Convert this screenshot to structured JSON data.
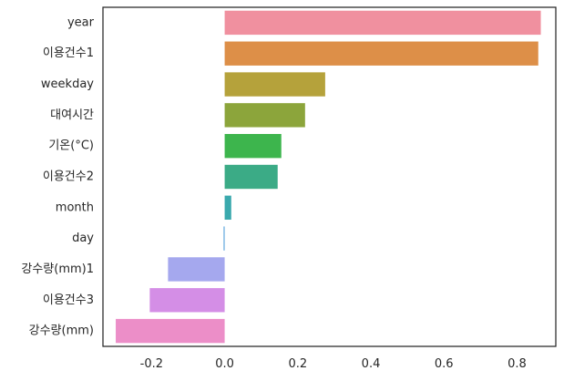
{
  "chart_data": {
    "type": "bar",
    "orientation": "horizontal",
    "categories": [
      "year",
      "이용건수1",
      "weekday",
      "대여시간",
      "기온(°C)",
      "이용건수2",
      "month",
      "day",
      "강수량(mm)1",
      "이용건수3",
      "강수량(mm)"
    ],
    "values": [
      0.865,
      0.858,
      0.275,
      0.22,
      0.155,
      0.145,
      0.018,
      -0.003,
      -0.155,
      -0.205,
      -0.298
    ],
    "colors": [
      "#f0909f",
      "#dd8f48",
      "#b5a23b",
      "#8ca53b",
      "#3db54d",
      "#3bab86",
      "#3aa9ad",
      "#62a8dd",
      "#a5a8ee",
      "#d48ee6",
      "#ec8ec8"
    ],
    "x_ticks": [
      "-0.2",
      "0.0",
      "0.2",
      "0.4",
      "0.6",
      "0.8"
    ],
    "x_tick_values": [
      -0.2,
      0.0,
      0.2,
      0.4,
      0.6,
      0.8
    ],
    "xlim": [
      -0.333,
      0.906
    ],
    "title": "",
    "xlabel": "",
    "ylabel": "",
    "grid": false
  }
}
